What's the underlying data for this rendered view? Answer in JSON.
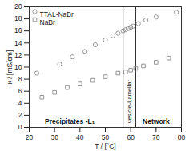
{
  "chart_data": {
    "type": "scatter",
    "x_label": "T / [°C]",
    "y_label": "κ / [mS/cm]",
    "xlim": [
      20,
      80
    ],
    "xticks": [
      20,
      30,
      40,
      50,
      60,
      70,
      80
    ],
    "ylim": [
      0,
      20
    ],
    "yticks": [
      0,
      2,
      4,
      6,
      8,
      10,
      12,
      14,
      16,
      18,
      20
    ],
    "legend": "upper left",
    "series": [
      {
        "name": "TTAL-NaBr",
        "color": "#8a8a8a",
        "marker": "circle",
        "x": [
          23,
          32,
          37,
          42,
          46,
          50,
          53,
          55,
          57,
          58,
          59,
          60,
          61,
          63,
          66,
          70,
          78
        ],
        "values": [
          9.0,
          10.5,
          11.7,
          12.6,
          13.7,
          14.5,
          15.2,
          15.6,
          16.0,
          16.2,
          16.4,
          16.6,
          16.8,
          17.2,
          17.8,
          18.3,
          19.1
        ]
      },
      {
        "name": "NaBr",
        "color": "#8a8a8a",
        "marker": "square",
        "x": [
          25,
          30,
          35,
          40,
          45,
          50,
          55,
          58,
          60,
          62,
          65,
          70,
          75
        ],
        "values": [
          5.0,
          5.8,
          6.6,
          7.2,
          7.8,
          8.4,
          9.0,
          9.2,
          9.5,
          9.8,
          10.2,
          10.8,
          11.5
        ]
      }
    ],
    "phase_boundaries": [
      57,
      62
    ],
    "annotations": [
      {
        "text": "Precipitates -L₁",
        "x": 36,
        "y": 0.9
      },
      {
        "text": "vesicle-Lamellar",
        "x": 59.5,
        "y": 4.3
      },
      {
        "text": "Network",
        "x": 70,
        "y": 0.9
      }
    ]
  }
}
